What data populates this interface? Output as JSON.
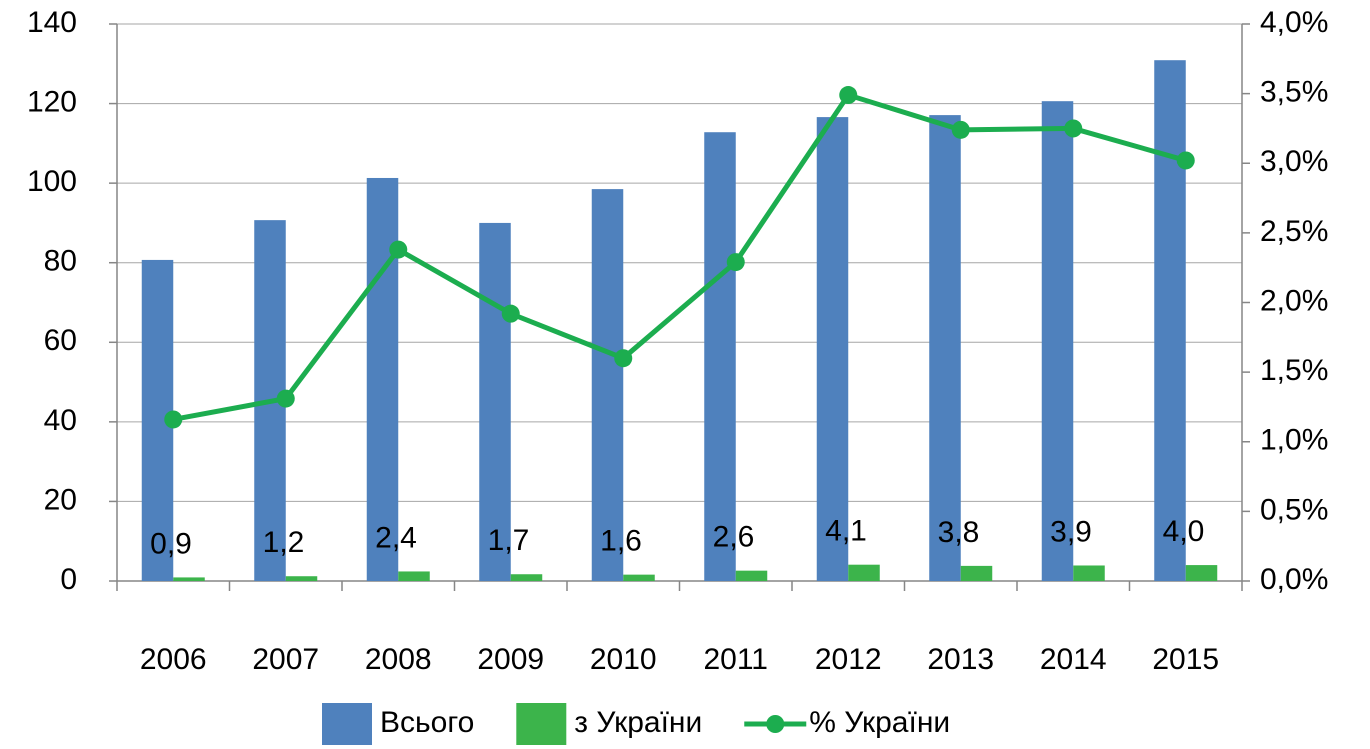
{
  "chart_data": {
    "type": "bar_line",
    "categories": [
      "2006",
      "2007",
      "2008",
      "2009",
      "2010",
      "2011",
      "2012",
      "2013",
      "2014",
      "2015"
    ],
    "series": [
      {
        "name": "Всього",
        "color": "#4f81bd",
        "type": "bar",
        "values": [
          80.7,
          90.7,
          101.3,
          90.0,
          98.5,
          112.8,
          116.6,
          117.1,
          120.6,
          130.9
        ]
      },
      {
        "name": "з України",
        "color": "#3cb44b",
        "type": "bar",
        "values": [
          0.9,
          1.2,
          2.4,
          1.7,
          1.6,
          2.6,
          4.1,
          3.8,
          3.9,
          4.0
        ],
        "value_labels": [
          "0,9",
          "1,2",
          "2,4",
          "1,7",
          "1,6",
          "2,6",
          "4,1",
          "3,8",
          "3,9",
          "4,0"
        ]
      },
      {
        "name": "% України",
        "color": "#1cad4f",
        "type": "line",
        "axis": "y2",
        "values": [
          1.16,
          1.31,
          2.38,
          1.92,
          1.6,
          2.29,
          3.49,
          3.24,
          3.25,
          3.02
        ]
      }
    ],
    "ylim": [
      0,
      140
    ],
    "yticks": [
      0,
      20,
      40,
      60,
      80,
      100,
      120,
      140
    ],
    "y2lim": [
      0,
      4
    ],
    "y2ticks": [
      {
        "value": 0,
        "label": "0,0%"
      },
      {
        "value": 0.5,
        "label": "0,5%"
      },
      {
        "value": 1,
        "label": "1,0%"
      },
      {
        "value": 1.5,
        "label": "1,5%"
      },
      {
        "value": 2,
        "label": "2,0%"
      },
      {
        "value": 2.5,
        "label": "2,5%"
      },
      {
        "value": 3,
        "label": "3,0%"
      },
      {
        "value": 3.5,
        "label": "3,5%"
      },
      {
        "value": 4,
        "label": "4,0%"
      }
    ],
    "grid": true,
    "legend": "bottom"
  }
}
